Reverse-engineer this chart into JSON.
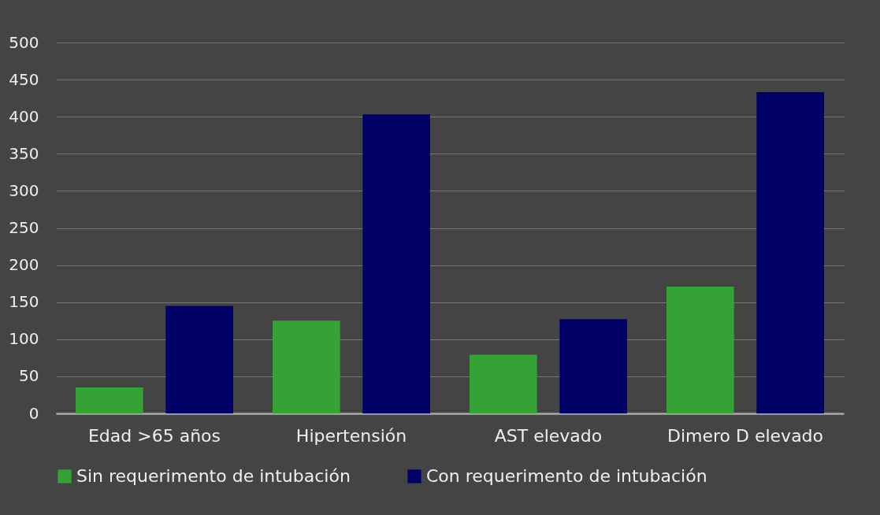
{
  "chart_data": {
    "type": "bar",
    "categories": [
      "Edad >65 años",
      "Hipertensión",
      "AST elevado",
      "Dimero D elevado"
    ],
    "series": [
      {
        "name": "Sin requerimento de intubación",
        "color": "#35a235",
        "values": [
          35,
          125,
          79,
          171
        ]
      },
      {
        "name": "Con requerimento de intubación",
        "color": "#000066",
        "values": [
          145,
          403,
          127,
          433
        ]
      }
    ],
    "ylim": [
      0,
      500
    ],
    "yticks": [
      0,
      50,
      100,
      150,
      200,
      250,
      300,
      350,
      400,
      450,
      500
    ],
    "grid": "y",
    "legend": "bottom"
  }
}
